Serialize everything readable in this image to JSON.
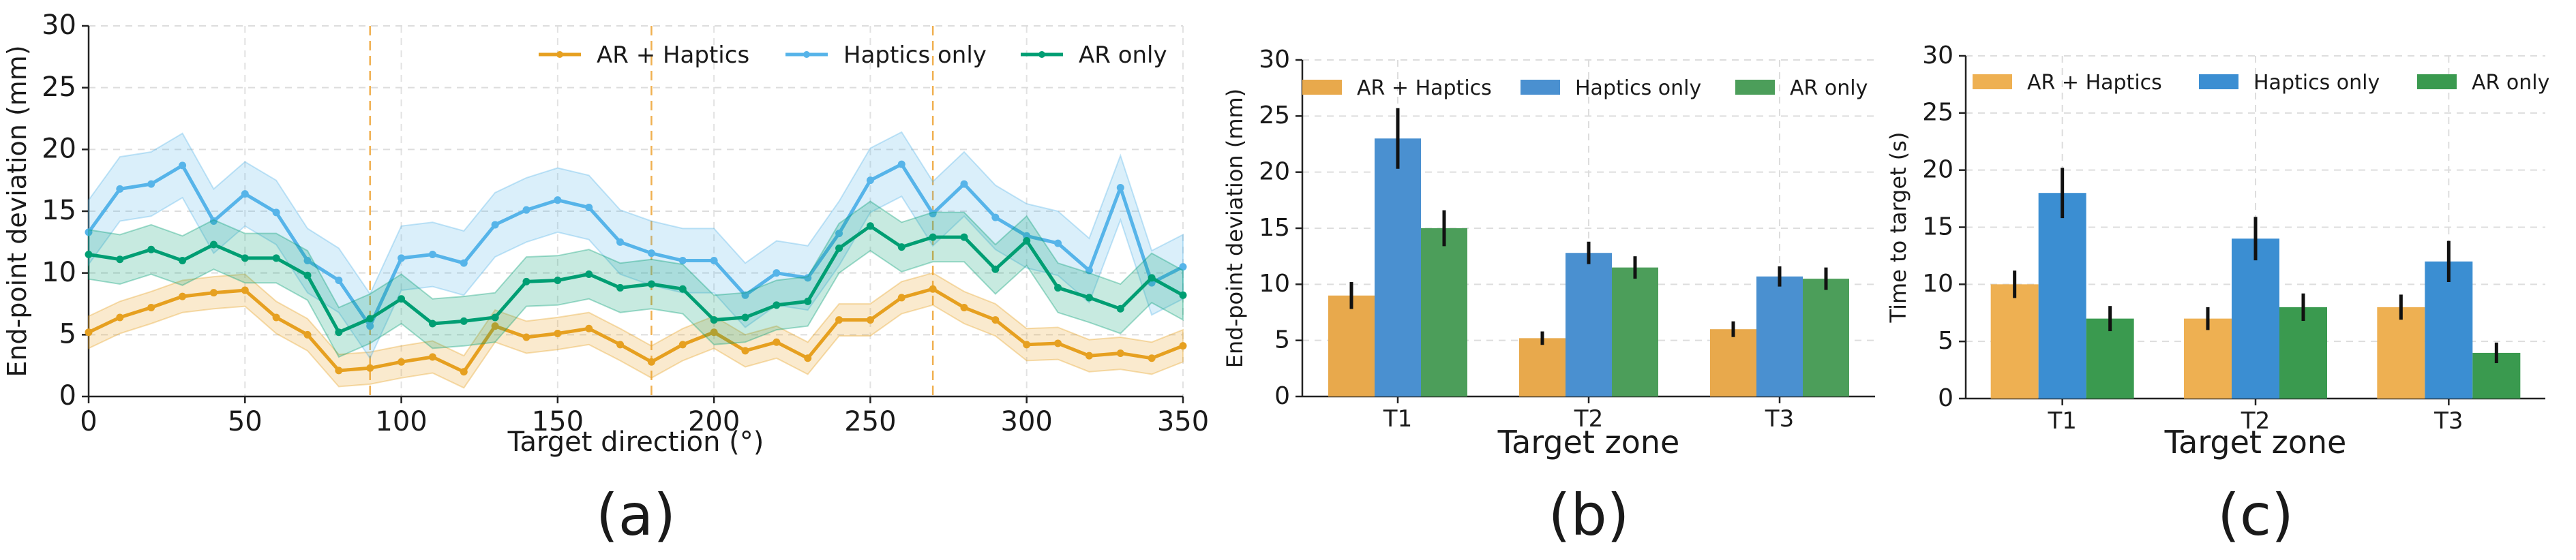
{
  "chart_data": [
    {
      "panel_label": "(a)",
      "type": "line",
      "xlabel": "Target direction (°)",
      "ylabel": "End-point deviation (mm)",
      "xlim": [
        0,
        350
      ],
      "ylim": [
        0,
        30
      ],
      "xticks": [
        0,
        50,
        100,
        150,
        200,
        250,
        300,
        350
      ],
      "yticks": [
        0,
        5,
        10,
        15,
        20,
        25,
        30
      ],
      "grid": true,
      "vlines": [
        90,
        180,
        270
      ],
      "legend_position": "top-right",
      "x": [
        0,
        10,
        20,
        30,
        40,
        50,
        60,
        70,
        80,
        90,
        100,
        110,
        120,
        130,
        140,
        150,
        160,
        170,
        180,
        190,
        200,
        210,
        220,
        230,
        240,
        250,
        260,
        270,
        280,
        290,
        300,
        310,
        320,
        330,
        340,
        350
      ],
      "series": [
        {
          "name": "AR + Haptics",
          "color": "#e6a020",
          "values": [
            5.2,
            6.4,
            7.2,
            8.1,
            8.4,
            8.6,
            6.4,
            5.0,
            2.1,
            2.3,
            2.8,
            3.2,
            2.0,
            5.7,
            4.8,
            5.1,
            5.5,
            4.2,
            2.8,
            4.2,
            5.2,
            3.7,
            4.4,
            3.1,
            6.2,
            6.2,
            8.0,
            8.7,
            7.2,
            6.2,
            4.2,
            4.3,
            3.3,
            3.5,
            3.1,
            4.1
          ],
          "band": 1.3
        },
        {
          "name": "Haptics only",
          "color": "#56b4e9",
          "values": [
            13.3,
            16.8,
            17.2,
            18.7,
            14.2,
            16.4,
            14.9,
            11.0,
            9.4,
            5.7,
            11.2,
            11.5,
            10.8,
            13.9,
            15.1,
            15.9,
            15.3,
            12.5,
            11.6,
            11.0,
            11.0,
            8.2,
            10.0,
            9.6,
            13.2,
            17.5,
            18.8,
            14.8,
            17.2,
            14.5,
            13.0,
            12.4,
            10.2,
            16.9,
            9.2,
            10.5
          ],
          "band": 2.6
        },
        {
          "name": "AR only",
          "color": "#009e73",
          "values": [
            11.5,
            11.1,
            11.9,
            11.0,
            12.3,
            11.2,
            11.2,
            9.8,
            5.2,
            6.3,
            7.9,
            5.9,
            6.1,
            6.4,
            9.3,
            9.4,
            9.9,
            8.8,
            9.1,
            8.7,
            6.2,
            6.4,
            7.4,
            7.7,
            12.0,
            13.8,
            12.1,
            12.9,
            12.9,
            10.3,
            12.6,
            8.8,
            8.0,
            7.1,
            9.6,
            8.2
          ],
          "band": 2.0
        }
      ]
    },
    {
      "panel_label": "(b)",
      "type": "bar",
      "categories": [
        "T1",
        "T2",
        "T3"
      ],
      "xlabel": "Target zone",
      "ylabel": "End-point deviation (mm)",
      "ylim": [
        0,
        30
      ],
      "yticks": [
        0,
        5,
        10,
        15,
        20,
        25,
        30
      ],
      "grid": true,
      "legend_position": "top",
      "series": [
        {
          "name": "AR + Haptics",
          "color": "#e8a94c",
          "values": [
            9.0,
            5.2,
            6.0
          ],
          "errors": [
            1.2,
            0.6,
            0.7
          ]
        },
        {
          "name": "Haptics only",
          "color": "#4a90d0",
          "values": [
            23.0,
            12.8,
            10.7
          ],
          "errors": [
            2.7,
            1.0,
            0.9
          ]
        },
        {
          "name": "AR only",
          "color": "#4c9e5a",
          "values": [
            15.0,
            11.5,
            10.5
          ],
          "errors": [
            1.6,
            1.0,
            1.0
          ]
        }
      ]
    },
    {
      "panel_label": "(c)",
      "type": "bar",
      "categories": [
        "T1",
        "T2",
        "T3"
      ],
      "xlabel": "Target zone",
      "ylabel": "Time to target (s)",
      "ylim": [
        0,
        30
      ],
      "yticks": [
        0,
        5,
        10,
        15,
        20,
        25,
        30
      ],
      "grid": true,
      "legend_position": "top",
      "series": [
        {
          "name": "AR + Haptics",
          "color": "#eeb052",
          "values": [
            10.0,
            7.0,
            8.0
          ],
          "errors": [
            1.2,
            1.0,
            1.1
          ]
        },
        {
          "name": "Haptics only",
          "color": "#3b8ed2",
          "values": [
            18.0,
            14.0,
            12.0
          ],
          "errors": [
            2.2,
            1.9,
            1.8
          ]
        },
        {
          "name": "AR only",
          "color": "#3a9a4f",
          "values": [
            7.0,
            8.0,
            4.0
          ],
          "errors": [
            1.1,
            1.2,
            0.9
          ]
        }
      ]
    }
  ]
}
